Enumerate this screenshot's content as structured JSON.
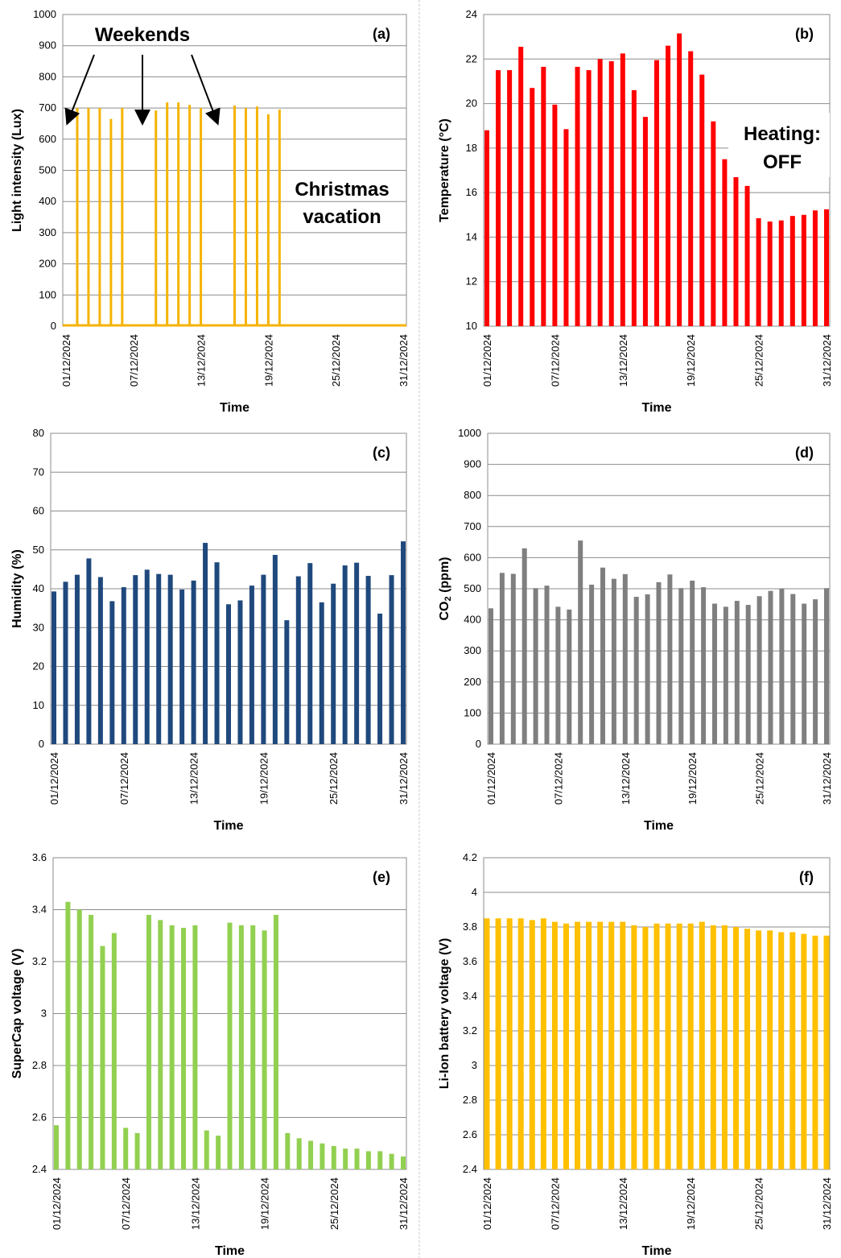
{
  "chart_data": [
    {
      "type": "bar",
      "panel_label": "(a)",
      "title": "",
      "xlabel": "Time",
      "ylabel": "Light intensity (Lux)",
      "ylim": [
        0,
        1000
      ],
      "yticks": [
        "0",
        "100",
        "200",
        "300",
        "400",
        "500",
        "600",
        "700",
        "800",
        "900",
        "1000"
      ],
      "xticks": [
        "01/12/2024",
        "07/12/2024",
        "13/12/2024",
        "19/12/2024",
        "25/12/2024",
        "31/12/2024"
      ],
      "grid": true,
      "color": "#F5B301",
      "bar_style": "thin",
      "baseline_line": true,
      "values": [
        0,
        700,
        700,
        700,
        665,
        700,
        0,
        0,
        692,
        718,
        718,
        710,
        700,
        0,
        0,
        708,
        700,
        705,
        680,
        695,
        0,
        0,
        0,
        0,
        0,
        0,
        0,
        0,
        0,
        0,
        0
      ],
      "annotations": {
        "weekends": "Weekends",
        "christmas_line1": "Christmas",
        "christmas_line2": "vacation"
      }
    },
    {
      "type": "bar",
      "panel_label": "(b)",
      "title": "",
      "xlabel": "Time",
      "ylabel": "Temperature (°C)",
      "ylim": [
        10,
        24
      ],
      "yticks": [
        "10",
        "12",
        "14",
        "16",
        "18",
        "20",
        "22",
        "24"
      ],
      "xticks": [
        "01/12/2024",
        "07/12/2024",
        "13/12/2024",
        "19/12/2024",
        "25/12/2024",
        "31/12/2024"
      ],
      "grid": true,
      "color": "#FF0000",
      "bar_style": "medium",
      "values": [
        18.8,
        21.5,
        21.5,
        22.55,
        20.7,
        21.65,
        19.95,
        18.85,
        21.65,
        21.5,
        22.0,
        21.9,
        22.25,
        20.6,
        19.4,
        21.95,
        22.6,
        23.15,
        22.35,
        21.3,
        19.2,
        17.5,
        17.4,
        16.3,
        14.85,
        14.7,
        14.75,
        14.95,
        15.0,
        15.2,
        15.25
      ],
      "annotations": {
        "heating_line1": "Heating:",
        "heating_line2": "OFF"
      }
    },
    {
      "type": "bar",
      "panel_label": "(c)",
      "title": "",
      "xlabel": "Time",
      "ylabel": "Humidity (%)",
      "ylim": [
        0,
        80
      ],
      "yticks": [
        "0",
        "10",
        "20",
        "30",
        "40",
        "50",
        "60",
        "70",
        "80"
      ],
      "xticks": [
        "01/12/2024",
        "07/12/2024",
        "13/12/2024",
        "19/12/2024",
        "25/12/2024",
        "31/12/2024"
      ],
      "grid": true,
      "color": "#1F497D",
      "bar_style": "medium",
      "values": [
        39.3,
        41.8,
        43.6,
        47.8,
        43,
        36.8,
        40.4,
        43.5,
        44.9,
        43.8,
        43.6,
        39.8,
        42.1,
        51.8,
        46.8,
        36,
        37,
        40.8,
        43.6,
        48.7,
        31.9,
        43.2,
        46.6,
        36.5,
        41.3,
        46,
        46.7,
        43.3,
        33.6,
        43.5,
        52.2
      ]
    },
    {
      "type": "bar",
      "panel_label": "(d)",
      "title": "",
      "xlabel": "Time",
      "ylabel": "CO2 (ppm)",
      "ylabel_main": "CO",
      "ylabel_sub": "2",
      "ylabel_unit": " (ppm)",
      "ylim": [
        0,
        1000
      ],
      "yticks": [
        "0",
        "100",
        "200",
        "300",
        "400",
        "500",
        "600",
        "700",
        "800",
        "900",
        "1000"
      ],
      "xticks": [
        "01/12/2024",
        "07/12/2024",
        "13/12/2024",
        "19/12/2024",
        "25/12/2024",
        "31/12/2024"
      ],
      "grid": true,
      "color": "#7F7F7F",
      "bar_style": "medium",
      "values": [
        437,
        551,
        548,
        630,
        502,
        510,
        442,
        433,
        655,
        513,
        568,
        532,
        547,
        474,
        482,
        521,
        546,
        502,
        526,
        505,
        452,
        442,
        461,
        448,
        476,
        493,
        501,
        483,
        452,
        466,
        502
      ]
    },
    {
      "type": "bar",
      "panel_label": "(e)",
      "title": "",
      "xlabel": "Time",
      "ylabel": "SuperCap voltage (V)",
      "ylim": [
        2.4,
        3.6
      ],
      "yticks": [
        "2.4",
        "2.6",
        "2.8",
        "3",
        "3.2",
        "3.4",
        "3.6"
      ],
      "xticks": [
        "01/12/2024",
        "07/12/2024",
        "13/12/2024",
        "19/12/2024",
        "25/12/2024",
        "31/12/2024"
      ],
      "grid": true,
      "color": "#92D050",
      "bar_style": "medium",
      "values": [
        2.57,
        3.43,
        3.4,
        3.38,
        3.26,
        3.31,
        2.56,
        2.54,
        3.38,
        3.36,
        3.34,
        3.33,
        3.34,
        2.55,
        2.53,
        3.35,
        3.34,
        3.34,
        3.32,
        3.38,
        2.54,
        2.52,
        2.51,
        2.5,
        2.49,
        2.48,
        2.48,
        2.47,
        2.47,
        2.46,
        2.45
      ]
    },
    {
      "type": "bar",
      "panel_label": "(f)",
      "title": "",
      "xlabel": "Time",
      "ylabel": "Li-Ion battery voltage (V)",
      "ylim": [
        2.4,
        4.2
      ],
      "yticks": [
        "2.4",
        "2.6",
        "2.8",
        "3",
        "3.2",
        "3.4",
        "3.6",
        "3.8",
        "4",
        "4.2"
      ],
      "xticks": [
        "01/12/2024",
        "07/12/2024",
        "13/12/2024",
        "19/12/2024",
        "25/12/2024",
        "31/12/2024"
      ],
      "grid": true,
      "color": "#FFC000",
      "bar_style": "wide",
      "values": [
        3.85,
        3.85,
        3.85,
        3.85,
        3.84,
        3.85,
        3.83,
        3.82,
        3.83,
        3.83,
        3.83,
        3.83,
        3.83,
        3.81,
        3.8,
        3.82,
        3.82,
        3.82,
        3.82,
        3.83,
        3.81,
        3.81,
        3.8,
        3.79,
        3.78,
        3.78,
        3.77,
        3.77,
        3.76,
        3.75,
        3.75
      ]
    }
  ]
}
